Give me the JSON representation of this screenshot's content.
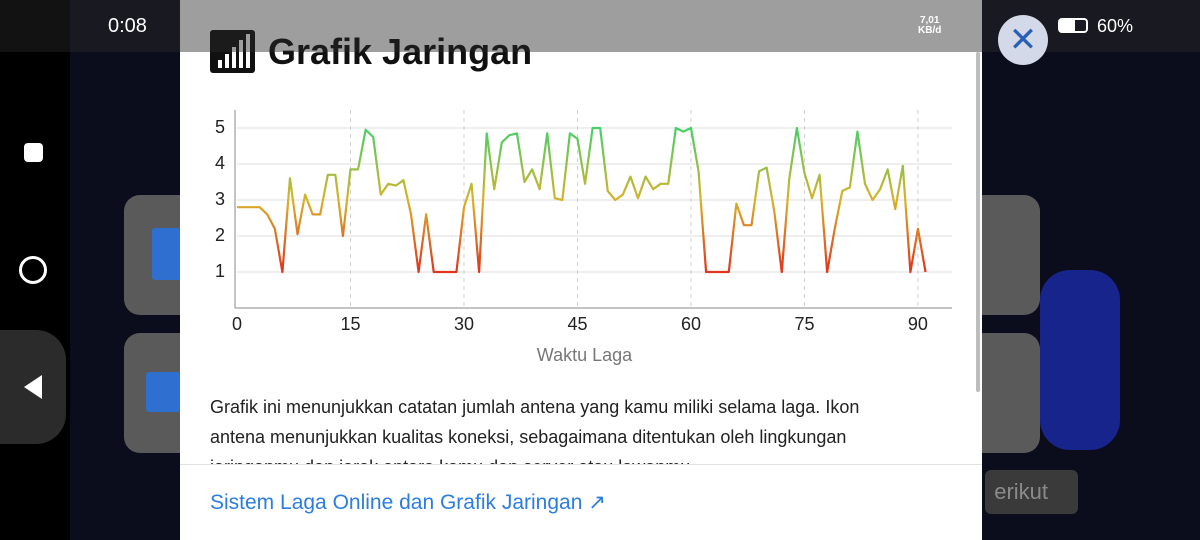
{
  "status_bar": {
    "time": "0:08",
    "network_speed": "7,01",
    "network_speed_unit": "KB/d",
    "battery": "60%"
  },
  "dialog": {
    "title": "Grafik Jaringan",
    "description": "Grafik ini menunjukkan catatan jumlah antena yang kamu miliki selama laga. Ikon antena menunjukkan kualitas koneksi, sebagaimana ditentukan oleh lingkungan jaringanmu dan jarak antara kamu dan server atau lawanmu.",
    "link": "Sistem Laga Online dan Grafik Jaringan ↗"
  },
  "background": {
    "next_button": "erikut"
  },
  "chart_data": {
    "type": "line",
    "x_label": "Waktu Laga",
    "x": [
      0,
      1,
      2,
      3,
      4,
      5,
      6,
      7,
      8,
      9,
      10,
      11,
      12,
      13,
      14,
      15,
      16,
      17,
      18,
      19,
      20,
      21,
      22,
      23,
      24,
      25,
      26,
      27,
      28,
      29,
      30,
      31,
      32,
      33,
      34,
      35,
      36,
      37,
      38,
      39,
      40,
      41,
      42,
      43,
      44,
      45,
      46,
      47,
      48,
      49,
      50,
      51,
      52,
      53,
      54,
      55,
      56,
      57,
      58,
      59,
      60,
      61,
      62,
      63,
      64,
      65,
      66,
      67,
      68,
      69,
      70,
      71,
      72,
      73,
      74,
      75,
      76,
      77,
      78,
      79,
      80,
      81,
      82,
      83,
      84,
      85,
      86,
      87,
      88,
      89,
      90,
      91
    ],
    "values": [
      2.8,
      2.8,
      2.8,
      2.8,
      2.6,
      2.2,
      1,
      3.6,
      2.05,
      3.15,
      2.6,
      2.6,
      3.7,
      3.7,
      2.0,
      3.85,
      3.85,
      4.95,
      4.75,
      3.15,
      3.45,
      3.4,
      3.55,
      2.6,
      1,
      2.6,
      1,
      1,
      1,
      1,
      2.8,
      3.45,
      1,
      4.85,
      3.3,
      4.6,
      4.8,
      4.85,
      3.5,
      3.85,
      3.3,
      4.85,
      3.05,
      3.0,
      4.85,
      4.7,
      3.45,
      5,
      5,
      3.25,
      3.0,
      3.15,
      3.65,
      3.05,
      3.65,
      3.3,
      3.45,
      3.45,
      5,
      4.9,
      5,
      3.8,
      1,
      1,
      1,
      1,
      2.9,
      2.3,
      2.3,
      3.8,
      3.9,
      2.7,
      1,
      3.6,
      5,
      3.75,
      3.05,
      3.7,
      1,
      2.2,
      3.25,
      3.35,
      4.9,
      3.45,
      3.0,
      3.3,
      3.85,
      2.75,
      3.95,
      1,
      2.2,
      1
    ],
    "gradient_colors": [
      "#e0341f",
      "#d8b22a",
      "#46d068"
    ],
    "xlim": [
      0,
      94.5
    ],
    "ylim": [
      0,
      5.5
    ],
    "xticks": [
      0,
      15,
      30,
      45,
      60,
      75,
      90
    ],
    "yticks": [
      1,
      2,
      3,
      4,
      5
    ],
    "grid": true
  }
}
